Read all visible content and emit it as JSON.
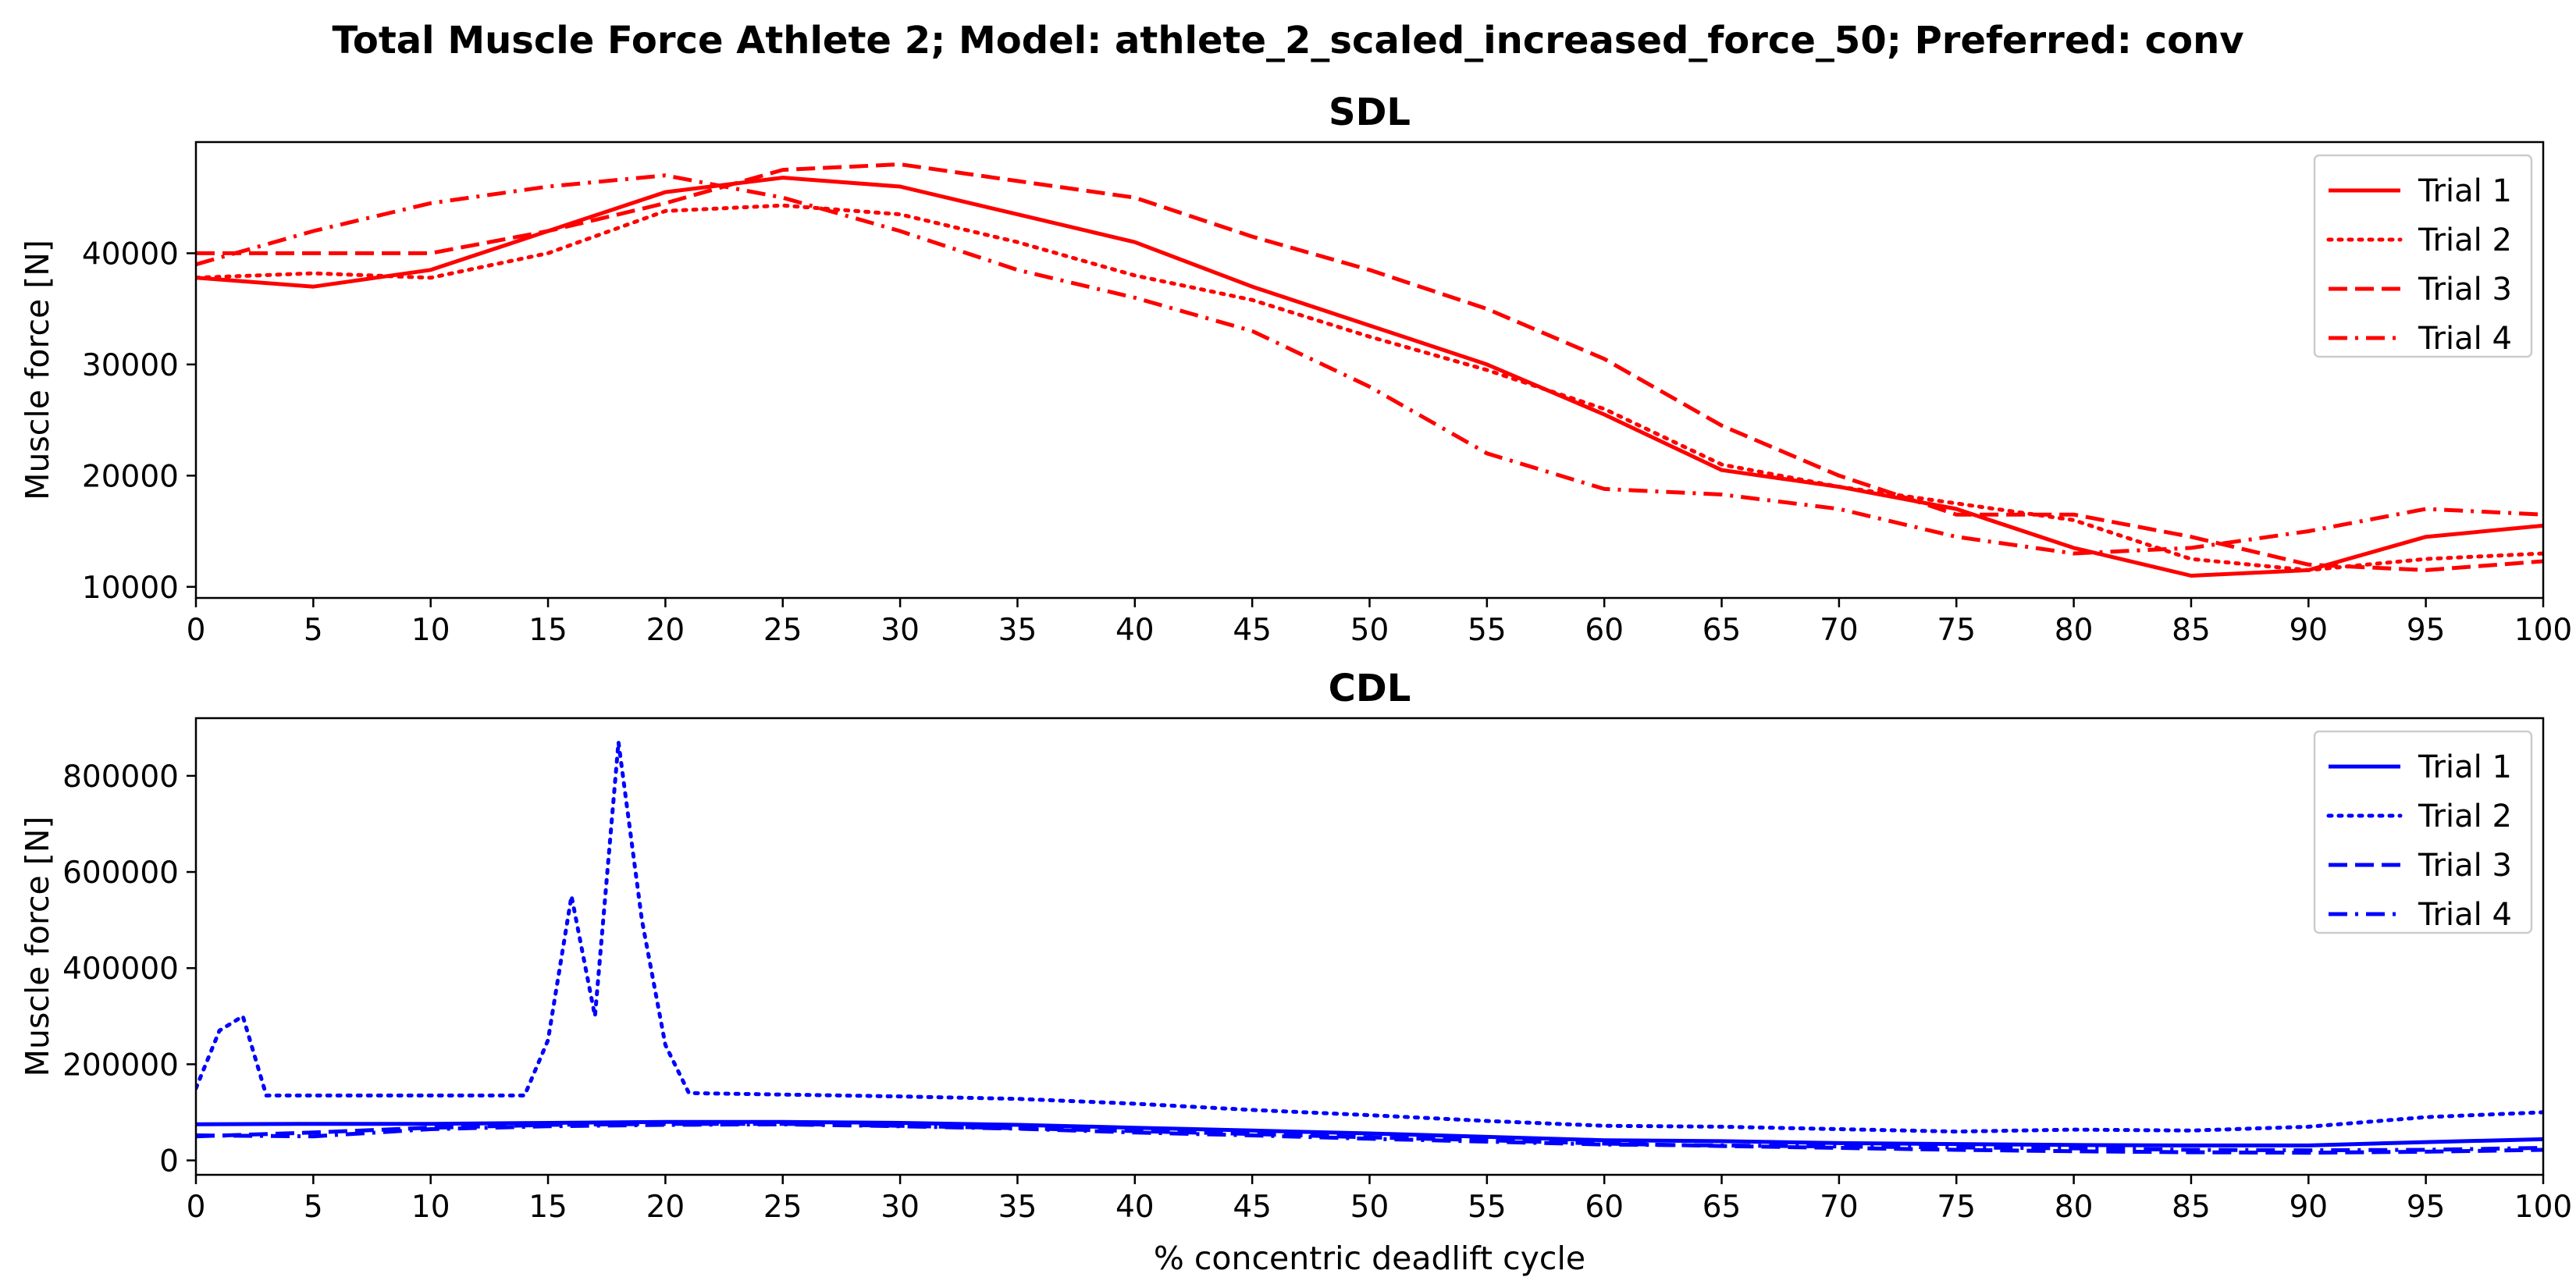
{
  "suptitle": "Total Muscle Force Athlete 2; Model: athlete_2_scaled_increased_force_50; Preferred: conv",
  "chart_data": [
    {
      "type": "line",
      "title": "SDL",
      "xlabel": "",
      "ylabel": "Muscle force [N]",
      "xlim": [
        0,
        100
      ],
      "ylim": [
        9000,
        50000
      ],
      "xticks": [
        0,
        5,
        10,
        15,
        20,
        25,
        30,
        35,
        40,
        45,
        50,
        55,
        60,
        65,
        70,
        75,
        80,
        85,
        90,
        95,
        100
      ],
      "yticks": [
        10000,
        20000,
        30000,
        40000
      ],
      "color": "#ff0000",
      "grid": false,
      "legend": "top-right",
      "x": [
        0,
        5,
        10,
        15,
        20,
        25,
        30,
        35,
        40,
        45,
        50,
        55,
        60,
        65,
        70,
        75,
        80,
        85,
        90,
        95,
        100
      ],
      "series": [
        {
          "name": "Trial 1",
          "style": "solid",
          "values": [
            37800,
            37000,
            38500,
            42000,
            45500,
            46800,
            46000,
            43500,
            41000,
            37000,
            33500,
            30000,
            25500,
            20500,
            19000,
            17000,
            13500,
            11000,
            11500,
            14500,
            15500
          ]
        },
        {
          "name": "Trial 2",
          "style": "dotted",
          "values": [
            37800,
            38200,
            37800,
            40000,
            43800,
            44300,
            43500,
            41000,
            38000,
            35800,
            32500,
            29500,
            26000,
            21000,
            19000,
            17500,
            16000,
            12500,
            11500,
            12500,
            13000
          ]
        },
        {
          "name": "Trial 3",
          "style": "dashed",
          "values": [
            40000,
            40000,
            40000,
            42000,
            44500,
            47500,
            48000,
            46500,
            45000,
            41500,
            38500,
            35000,
            30500,
            24500,
            20000,
            16500,
            16500,
            14500,
            12000,
            11500,
            12300
          ]
        },
        {
          "name": "Trial 4",
          "style": "dashdot",
          "values": [
            39000,
            42000,
            44500,
            46000,
            47000,
            45000,
            42000,
            38500,
            36000,
            33000,
            28000,
            22000,
            18800,
            18300,
            17000,
            14500,
            13000,
            13500,
            15000,
            17000,
            16500
          ]
        }
      ]
    },
    {
      "type": "line",
      "title": "CDL",
      "xlabel": "% concentric deadlift cycle",
      "ylabel": "Muscle force [N]",
      "xlim": [
        0,
        100
      ],
      "ylim": [
        -30000,
        920000
      ],
      "xticks": [
        0,
        5,
        10,
        15,
        20,
        25,
        30,
        35,
        40,
        45,
        50,
        55,
        60,
        65,
        70,
        75,
        80,
        85,
        90,
        95,
        100
      ],
      "yticks": [
        0,
        200000,
        400000,
        600000,
        800000
      ],
      "color": "#0000ff",
      "grid": false,
      "legend": "top-right",
      "series": [
        {
          "name": "Trial 1",
          "style": "solid",
          "x": [
            0,
            5,
            10,
            15,
            20,
            25,
            30,
            35,
            40,
            45,
            50,
            55,
            60,
            65,
            70,
            75,
            80,
            85,
            90,
            95,
            100
          ],
          "values": [
            75000,
            76000,
            76000,
            78000,
            80000,
            80000,
            78000,
            74000,
            68000,
            62000,
            56000,
            49000,
            42000,
            40000,
            36000,
            34000,
            32000,
            31000,
            31000,
            38000,
            44000
          ]
        },
        {
          "name": "Trial 2",
          "style": "dotted",
          "x": [
            0,
            1,
            2,
            3,
            5,
            10,
            14,
            15,
            16,
            17,
            18,
            19,
            20,
            21,
            25,
            30,
            35,
            40,
            45,
            50,
            55,
            60,
            65,
            70,
            75,
            80,
            85,
            90,
            95,
            100
          ],
          "values": [
            150000,
            270000,
            300000,
            135000,
            135000,
            135000,
            135000,
            250000,
            550000,
            300000,
            870000,
            500000,
            240000,
            140000,
            137000,
            133000,
            128000,
            118000,
            105000,
            94000,
            82000,
            72000,
            70000,
            65000,
            60000,
            64000,
            62000,
            70000,
            90000,
            100000
          ]
        },
        {
          "name": "Trial 3",
          "style": "dashed",
          "x": [
            0,
            5,
            10,
            15,
            20,
            25,
            30,
            35,
            40,
            45,
            50,
            55,
            60,
            65,
            70,
            75,
            80,
            85,
            90,
            95,
            100
          ],
          "values": [
            50000,
            58000,
            68000,
            74000,
            76000,
            76000,
            72000,
            67000,
            61000,
            55000,
            48000,
            42000,
            35000,
            30000,
            26000,
            22000,
            19000,
            17000,
            16000,
            18000,
            22000
          ]
        },
        {
          "name": "Trial 4",
          "style": "dashdot",
          "x": [
            0,
            5,
            10,
            15,
            20,
            25,
            30,
            35,
            40,
            45,
            50,
            55,
            60,
            65,
            70,
            75,
            80,
            85,
            90,
            95,
            100
          ],
          "values": [
            52000,
            50000,
            65000,
            71000,
            74000,
            75000,
            71000,
            66000,
            58000,
            52000,
            45000,
            39000,
            33000,
            31000,
            29000,
            27000,
            25000,
            22000,
            21000,
            22000,
            26000
          ]
        }
      ]
    }
  ]
}
